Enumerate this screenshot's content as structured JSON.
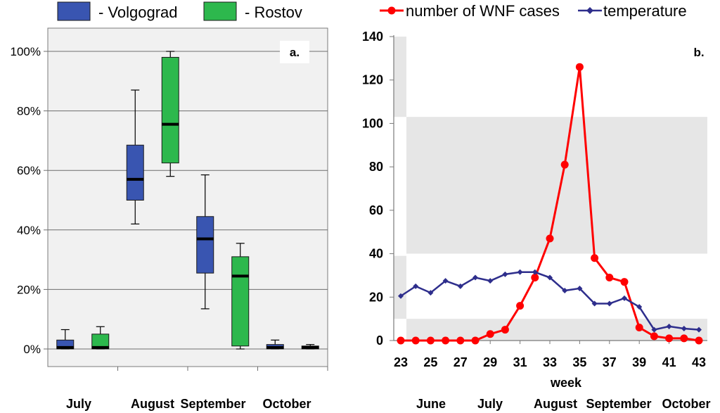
{
  "chart_data": [
    {
      "type": "box",
      "panel_label": "a.",
      "legend_position": "top",
      "series": [
        {
          "name": "- Volgograd",
          "color": "#3955b1",
          "boxes": [
            {
              "category": "July",
              "min": 0,
              "q1": 0,
              "median": 0.5,
              "q3": 3,
              "max": 6.5
            },
            {
              "category": "August",
              "min": 42,
              "q1": 50,
              "median": 57,
              "q3": 68.5,
              "max": 87
            },
            {
              "category": "September",
              "min": 13.5,
              "q1": 25.5,
              "median": 37,
              "q3": 44.5,
              "max": 58.5
            },
            {
              "category": "October",
              "min": 0,
              "q1": 0,
              "median": 0.5,
              "q3": 1.5,
              "max": 3
            }
          ]
        },
        {
          "name": "- Rostov",
          "color": "#2db84d",
          "boxes": [
            {
              "category": "July",
              "min": 0,
              "q1": 0,
              "median": 0.5,
              "q3": 5,
              "max": 7.5
            },
            {
              "category": "August",
              "min": 58,
              "q1": 62.5,
              "median": 75.5,
              "q3": 98,
              "max": 100
            },
            {
              "category": "September",
              "min": 0,
              "q1": 1,
              "median": 24.5,
              "q3": 31,
              "max": 35.5
            },
            {
              "category": "October",
              "min": 0,
              "q1": 0,
              "median": 0.5,
              "q3": 1,
              "max": 1.5
            }
          ]
        }
      ],
      "categories": [
        "July",
        "August",
        "September",
        "October"
      ],
      "y_ticks": [
        "0%",
        "20%",
        "40%",
        "60%",
        "80%",
        "100%"
      ],
      "ylim": [
        0,
        100
      ],
      "grid": true
    },
    {
      "type": "line",
      "panel_label": "b.",
      "legend_position": "top",
      "x": [
        23,
        24,
        25,
        26,
        27,
        28,
        29,
        30,
        31,
        32,
        33,
        34,
        35,
        36,
        37,
        38,
        39,
        40,
        41,
        42,
        43
      ],
      "series": [
        {
          "name": "number of WNF cases",
          "color": "#ff0000",
          "values": [
            0,
            0,
            0,
            0,
            0,
            0,
            3,
            5,
            16,
            29,
            47,
            81,
            126,
            38,
            29,
            27,
            6,
            2,
            1,
            1,
            0
          ]
        },
        {
          "name": "temperature",
          "color": "#2e2e8c",
          "values": [
            20.5,
            25,
            22,
            27.5,
            25,
            29,
            27.5,
            30.5,
            31.5,
            31.5,
            29,
            23,
            24,
            17,
            17,
            19.5,
            15.5,
            5,
            6.5,
            5.5,
            5
          ]
        }
      ],
      "x_ticks": [
        "23",
        "25",
        "27",
        "29",
        "31",
        "33",
        "35",
        "37",
        "39",
        "41",
        "43"
      ],
      "y_ticks": [
        "0",
        "20",
        "40",
        "60",
        "80",
        "100",
        "120",
        "140"
      ],
      "xlabel": "week",
      "month_labels": [
        "June",
        "July",
        "August",
        "September",
        "October"
      ],
      "xlim": [
        23,
        43
      ],
      "ylim": [
        0,
        140
      ]
    }
  ]
}
